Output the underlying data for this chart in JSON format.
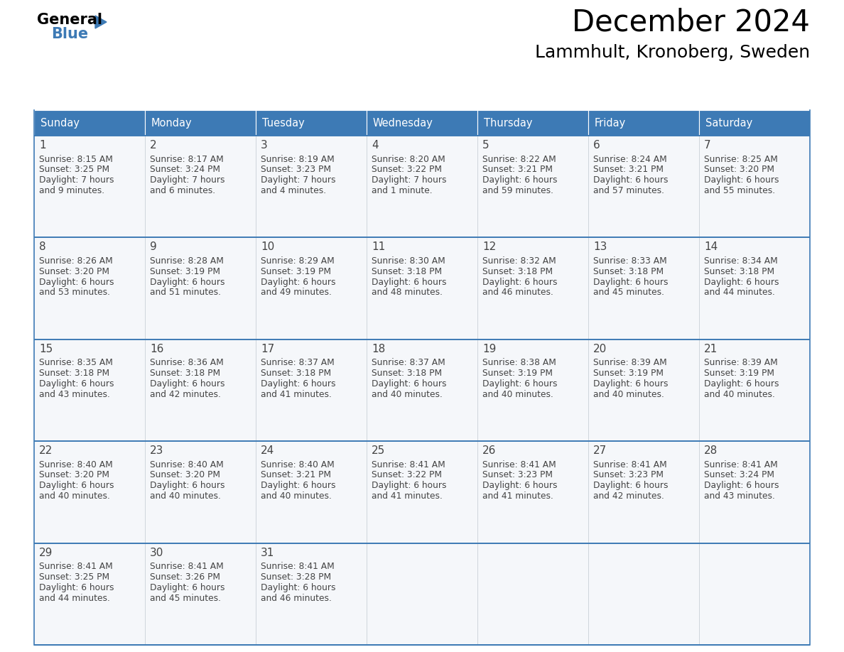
{
  "title": "December 2024",
  "subtitle": "Lammhult, Kronoberg, Sweden",
  "header_bg_color": "#3d7ab5",
  "header_text_color": "#ffffff",
  "border_color": "#3d7ab5",
  "text_color": "#444444",
  "cell_bg": "#f5f7fa",
  "days_of_week": [
    "Sunday",
    "Monday",
    "Tuesday",
    "Wednesday",
    "Thursday",
    "Friday",
    "Saturday"
  ],
  "weeks": [
    [
      {
        "day": "1",
        "sunrise": "8:15 AM",
        "sunset": "3:25 PM",
        "daylight1": "7 hours",
        "daylight2": "and 9 minutes."
      },
      {
        "day": "2",
        "sunrise": "8:17 AM",
        "sunset": "3:24 PM",
        "daylight1": "7 hours",
        "daylight2": "and 6 minutes."
      },
      {
        "day": "3",
        "sunrise": "8:19 AM",
        "sunset": "3:23 PM",
        "daylight1": "7 hours",
        "daylight2": "and 4 minutes."
      },
      {
        "day": "4",
        "sunrise": "8:20 AM",
        "sunset": "3:22 PM",
        "daylight1": "7 hours",
        "daylight2": "and 1 minute."
      },
      {
        "day": "5",
        "sunrise": "8:22 AM",
        "sunset": "3:21 PM",
        "daylight1": "6 hours",
        "daylight2": "and 59 minutes."
      },
      {
        "day": "6",
        "sunrise": "8:24 AM",
        "sunset": "3:21 PM",
        "daylight1": "6 hours",
        "daylight2": "and 57 minutes."
      },
      {
        "day": "7",
        "sunrise": "8:25 AM",
        "sunset": "3:20 PM",
        "daylight1": "6 hours",
        "daylight2": "and 55 minutes."
      }
    ],
    [
      {
        "day": "8",
        "sunrise": "8:26 AM",
        "sunset": "3:20 PM",
        "daylight1": "6 hours",
        "daylight2": "and 53 minutes."
      },
      {
        "day": "9",
        "sunrise": "8:28 AM",
        "sunset": "3:19 PM",
        "daylight1": "6 hours",
        "daylight2": "and 51 minutes."
      },
      {
        "day": "10",
        "sunrise": "8:29 AM",
        "sunset": "3:19 PM",
        "daylight1": "6 hours",
        "daylight2": "and 49 minutes."
      },
      {
        "day": "11",
        "sunrise": "8:30 AM",
        "sunset": "3:18 PM",
        "daylight1": "6 hours",
        "daylight2": "and 48 minutes."
      },
      {
        "day": "12",
        "sunrise": "8:32 AM",
        "sunset": "3:18 PM",
        "daylight1": "6 hours",
        "daylight2": "and 46 minutes."
      },
      {
        "day": "13",
        "sunrise": "8:33 AM",
        "sunset": "3:18 PM",
        "daylight1": "6 hours",
        "daylight2": "and 45 minutes."
      },
      {
        "day": "14",
        "sunrise": "8:34 AM",
        "sunset": "3:18 PM",
        "daylight1": "6 hours",
        "daylight2": "and 44 minutes."
      }
    ],
    [
      {
        "day": "15",
        "sunrise": "8:35 AM",
        "sunset": "3:18 PM",
        "daylight1": "6 hours",
        "daylight2": "and 43 minutes."
      },
      {
        "day": "16",
        "sunrise": "8:36 AM",
        "sunset": "3:18 PM",
        "daylight1": "6 hours",
        "daylight2": "and 42 minutes."
      },
      {
        "day": "17",
        "sunrise": "8:37 AM",
        "sunset": "3:18 PM",
        "daylight1": "6 hours",
        "daylight2": "and 41 minutes."
      },
      {
        "day": "18",
        "sunrise": "8:37 AM",
        "sunset": "3:18 PM",
        "daylight1": "6 hours",
        "daylight2": "and 40 minutes."
      },
      {
        "day": "19",
        "sunrise": "8:38 AM",
        "sunset": "3:19 PM",
        "daylight1": "6 hours",
        "daylight2": "and 40 minutes."
      },
      {
        "day": "20",
        "sunrise": "8:39 AM",
        "sunset": "3:19 PM",
        "daylight1": "6 hours",
        "daylight2": "and 40 minutes."
      },
      {
        "day": "21",
        "sunrise": "8:39 AM",
        "sunset": "3:19 PM",
        "daylight1": "6 hours",
        "daylight2": "and 40 minutes."
      }
    ],
    [
      {
        "day": "22",
        "sunrise": "8:40 AM",
        "sunset": "3:20 PM",
        "daylight1": "6 hours",
        "daylight2": "and 40 minutes."
      },
      {
        "day": "23",
        "sunrise": "8:40 AM",
        "sunset": "3:20 PM",
        "daylight1": "6 hours",
        "daylight2": "and 40 minutes."
      },
      {
        "day": "24",
        "sunrise": "8:40 AM",
        "sunset": "3:21 PM",
        "daylight1": "6 hours",
        "daylight2": "and 40 minutes."
      },
      {
        "day": "25",
        "sunrise": "8:41 AM",
        "sunset": "3:22 PM",
        "daylight1": "6 hours",
        "daylight2": "and 41 minutes."
      },
      {
        "day": "26",
        "sunrise": "8:41 AM",
        "sunset": "3:23 PM",
        "daylight1": "6 hours",
        "daylight2": "and 41 minutes."
      },
      {
        "day": "27",
        "sunrise": "8:41 AM",
        "sunset": "3:23 PM",
        "daylight1": "6 hours",
        "daylight2": "and 42 minutes."
      },
      {
        "day": "28",
        "sunrise": "8:41 AM",
        "sunset": "3:24 PM",
        "daylight1": "6 hours",
        "daylight2": "and 43 minutes."
      }
    ],
    [
      {
        "day": "29",
        "sunrise": "8:41 AM",
        "sunset": "3:25 PM",
        "daylight1": "6 hours",
        "daylight2": "and 44 minutes."
      },
      {
        "day": "30",
        "sunrise": "8:41 AM",
        "sunset": "3:26 PM",
        "daylight1": "6 hours",
        "daylight2": "and 45 minutes."
      },
      {
        "day": "31",
        "sunrise": "8:41 AM",
        "sunset": "3:28 PM",
        "daylight1": "6 hours",
        "daylight2": "and 46 minutes."
      },
      null,
      null,
      null,
      null
    ]
  ],
  "fig_width": 11.88,
  "fig_height": 9.18,
  "dpi": 100
}
